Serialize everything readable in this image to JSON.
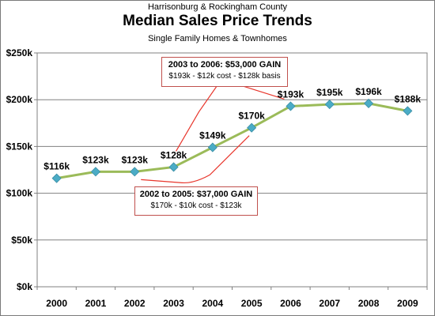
{
  "header": {
    "subtitle": "Harrisonburg & Rockingham County",
    "title": "Median Sales Price Trends",
    "subtitle2": "Single Family Homes & Townhomes"
  },
  "chart_data": {
    "type": "line",
    "title": "Median Sales Price Trends",
    "subtitle": "Harrisonburg & Rockingham County",
    "xlabel": "",
    "ylabel": "",
    "categories": [
      "2000",
      "2001",
      "2002",
      "2003",
      "2004",
      "2005",
      "2006",
      "2007",
      "2008",
      "2009"
    ],
    "series": [
      {
        "values": [
          116,
          123,
          123,
          128,
          149,
          170,
          193,
          195,
          196,
          188
        ],
        "labels": [
          "$116k",
          "$123k",
          "$123k",
          "$128k",
          "$149k",
          "$170k",
          "$193k",
          "$195k",
          "$196k",
          "$188k"
        ]
      }
    ],
    "ylim": [
      0,
      250
    ],
    "yticks": [
      0,
      50,
      100,
      150,
      200,
      250
    ],
    "ytick_labels": [
      "$0k",
      "$50k",
      "$100k",
      "$150k",
      "$200k",
      "$250k"
    ],
    "grid": "horizontal",
    "colors": {
      "line": "#9bbb59",
      "marker": "#4bacc6",
      "annotation_ink": "#e8352b",
      "plot_bg": "#ffffff"
    },
    "annotations": [
      {
        "line1": "2003 to 2006:  $53,000 GAIN",
        "line2": "$193k - $12k cost - $128k basis"
      },
      {
        "line1": "2002 to 2005:  $37,000 GAIN",
        "line2": "$170k - $10k cost - $123k"
      }
    ]
  }
}
